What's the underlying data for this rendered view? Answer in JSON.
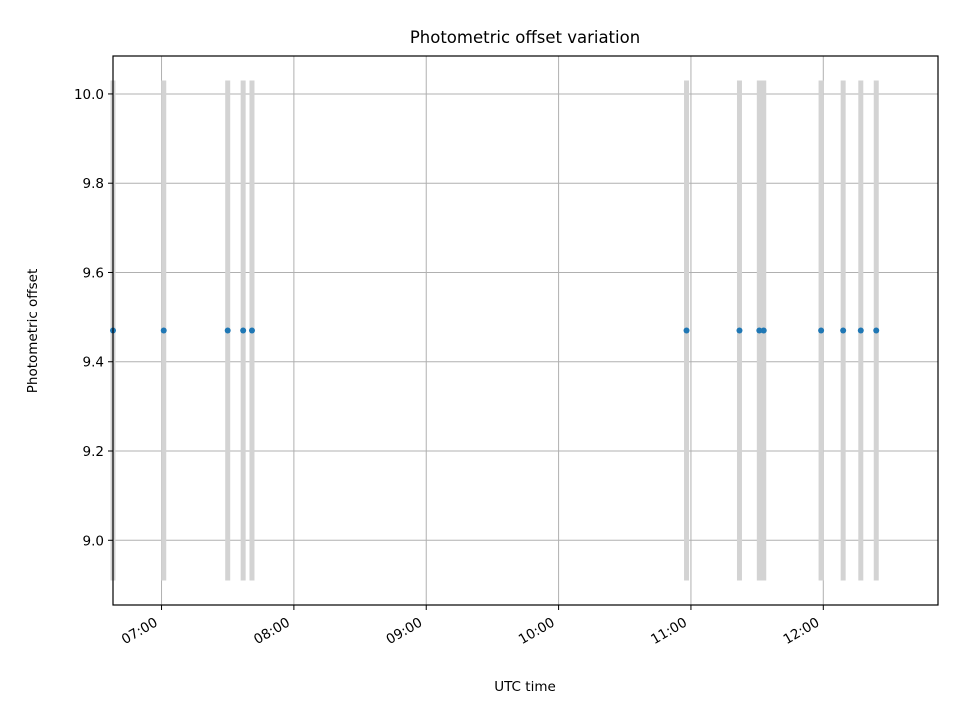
{
  "chart_data": {
    "type": "scatter",
    "title": "Photometric offset variation",
    "xlabel": "UTC time",
    "ylabel": "Photometric offset",
    "x_is_time": true,
    "x_tick_labels": [
      "07:00",
      "08:00",
      "09:00",
      "10:00",
      "11:00",
      "12:00"
    ],
    "x_ticks": [
      "07:00",
      "08:00",
      "09:00",
      "10:00",
      "11:00",
      "12:00"
    ],
    "xlim": [
      "06:38",
      "12:52"
    ],
    "y_tick_labels": [
      "9.0",
      "9.2",
      "9.4",
      "9.6",
      "9.8",
      "10.0"
    ],
    "y_ticks": [
      9.0,
      9.2,
      9.4,
      9.6,
      9.8,
      10.0
    ],
    "ylim": [
      8.855,
      10.085
    ],
    "grid": true,
    "series": [
      {
        "marker_color": "#1f77b4",
        "x": [
          "06:38",
          "07:01",
          "07:30",
          "07:37",
          "07:41",
          "10:58",
          "11:22",
          "11:31",
          "11:33",
          "11:59",
          "12:09",
          "12:17",
          "12:24"
        ],
        "y": [
          9.47,
          9.47,
          9.47,
          9.47,
          9.47,
          9.47,
          9.47,
          9.47,
          9.47,
          9.47,
          9.47,
          9.47,
          9.47
        ],
        "yerr_low": [
          8.91,
          8.91,
          8.91,
          8.91,
          8.91,
          8.91,
          8.91,
          8.91,
          8.91,
          8.91,
          8.91,
          8.91,
          8.91
        ],
        "yerr_high": [
          10.03,
          10.03,
          10.03,
          10.03,
          10.03,
          10.03,
          10.03,
          10.03,
          10.03,
          10.03,
          10.03,
          10.03,
          10.03
        ],
        "errorbar_color": "#d3d3d3"
      }
    ]
  }
}
